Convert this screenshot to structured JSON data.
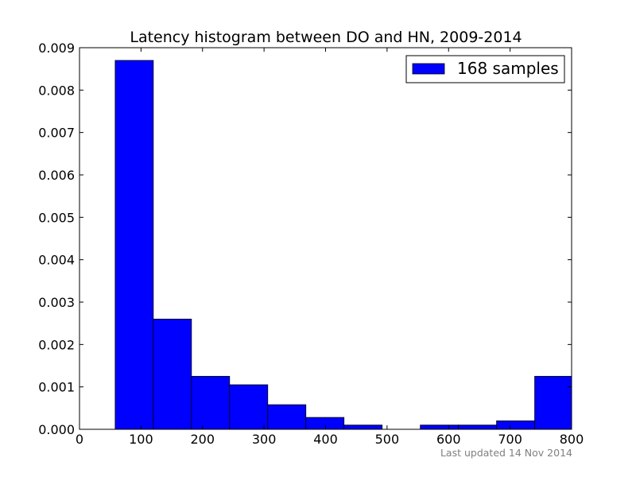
{
  "chart_data": {
    "type": "bar",
    "title": "Latency histogram between DO and HN, 2009-2014",
    "xlabel": "",
    "ylabel": "",
    "xlim": [
      0,
      800
    ],
    "ylim": [
      0,
      0.009
    ],
    "x_ticks": [
      0,
      100,
      200,
      300,
      400,
      500,
      600,
      700,
      800
    ],
    "x_tick_labels": [
      "0",
      "100",
      "200",
      "300",
      "400",
      "500",
      "600",
      "700",
      "800"
    ],
    "y_ticks": [
      0,
      0.001,
      0.002,
      0.003,
      0.004,
      0.005,
      0.006,
      0.007,
      0.008,
      0.009
    ],
    "y_tick_labels": [
      "0.000",
      "0.001",
      "0.002",
      "0.003",
      "0.004",
      "0.005",
      "0.006",
      "0.007",
      "0.008",
      "0.009"
    ],
    "grid": false,
    "legend_position": "top-right",
    "series": [
      {
        "name": "168 samples",
        "color": "#0000ff",
        "bins": [
          {
            "x0": 58,
            "x1": 120,
            "value": 0.0087
          },
          {
            "x0": 120,
            "x1": 182,
            "value": 0.0026
          },
          {
            "x0": 182,
            "x1": 244,
            "value": 0.00125
          },
          {
            "x0": 244,
            "x1": 306,
            "value": 0.00105
          },
          {
            "x0": 306,
            "x1": 368,
            "value": 0.00058
          },
          {
            "x0": 368,
            "x1": 430,
            "value": 0.00028
          },
          {
            "x0": 430,
            "x1": 492,
            "value": 0.0001
          },
          {
            "x0": 492,
            "x1": 554,
            "value": 0
          },
          {
            "x0": 554,
            "x1": 616,
            "value": 0.0001
          },
          {
            "x0": 616,
            "x1": 678,
            "value": 0.0001
          },
          {
            "x0": 678,
            "x1": 740,
            "value": 0.0002
          },
          {
            "x0": 740,
            "x1": 800,
            "value": 0.00125
          }
        ]
      }
    ],
    "footer_text": "Last updated 14 Nov 2014"
  }
}
